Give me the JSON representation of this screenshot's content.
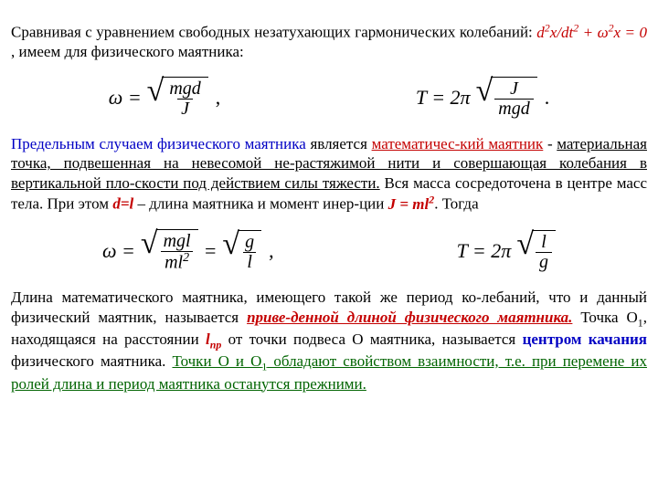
{
  "para1": {
    "t1": "Сравнивая с уравнением свободных незатухающих гармонических колебаний: ",
    "eq": "d",
    "eq2": "2",
    "eq3": "x/dt",
    "eq4": "2",
    "eq5": " + ω",
    "eq6": "2",
    "eq7": "x = 0",
    "t2": " , имеем для физического маятника:"
  },
  "formula1": {
    "lhs1": "ω =",
    "num1": "mgd",
    "den1": "J",
    "lhs2": "T = 2π",
    "num2": "J",
    "den2": "mgd"
  },
  "para2": {
    "t1": "Предельным случаем физического маятника",
    "t2": " является ",
    "t3": "математичес-кий маятник",
    "t4": " - ",
    "t5": "материальная точка, подвешенная на невесомой не-растяжимой нити и совершающая колебания в вертикальной пло-скости под действием силы тяжести.",
    "t6": " Вся масса сосредоточена в центре масс тела. При этом ",
    "t7": "d=l",
    "t8": " – длина маятника и момент инер-ции ",
    "t9": "J = ml",
    "t10": "2",
    "t11": ". Тогда"
  },
  "formula2": {
    "lhs1": "ω =",
    "num1": "mgl",
    "den1": "ml",
    "den1sup": "2",
    "mid": "=",
    "num2": "g",
    "den2": "l",
    "lhs2": "T = 2π",
    "num3": "l",
    "den3": "g"
  },
  "para3": {
    "t1": "Длина математического маятника, имеющего такой же период ко-лебаний, что и данный физический маятник, называется ",
    "t2": "приве-денной длиной физического маятника.",
    "t3": " Точка O",
    "t4": "1",
    "t5": ", находящаяся на расстоянии ",
    "t6": "l",
    "t7": "пр",
    "t8": " от точки подвеса O маятника, называется ",
    "t9": "центром качания",
    "t10": " физического маятника. ",
    "t11": "Точки O и O",
    "t12": "1",
    "t13": " обладают свойством взаимности, т.е. при перемене их ролей длина и период маятника останутся прежними."
  }
}
